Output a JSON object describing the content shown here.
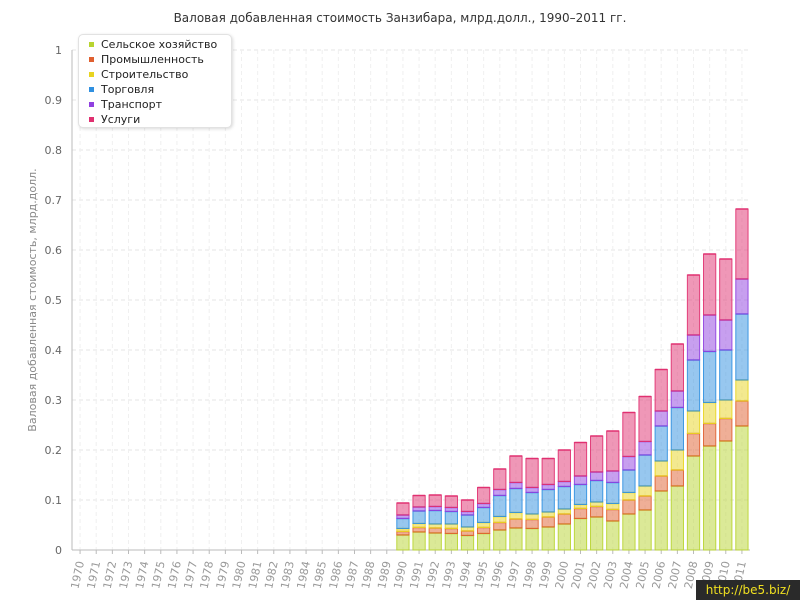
{
  "chart_data": {
    "type": "bar",
    "stacked": true,
    "title": "Валовая добавленная стоимость Занзибара, млрд.долл., 1990–2011 гг.",
    "xlabel": "",
    "ylabel": "Валовая добавленная стоимость, млрд.долл.",
    "ylim": [
      0,
      1
    ],
    "yticks": [
      "0",
      "0.1",
      "0.2",
      "0.3",
      "0.4",
      "0.5",
      "0.6",
      "0.7",
      "0.8",
      "0.9",
      "1"
    ],
    "grid": true,
    "legend_position": "top-left",
    "categories": [
      "1970",
      "1971",
      "1972",
      "1973",
      "1974",
      "1975",
      "1976",
      "1977",
      "1978",
      "1979",
      "1980",
      "1981",
      "1982",
      "1983",
      "1984",
      "1985",
      "1986",
      "1987",
      "1988",
      "1989",
      "1990",
      "1991",
      "1992",
      "1993",
      "1994",
      "1995",
      "1996",
      "1997",
      "1998",
      "1999",
      "2000",
      "2001",
      "2002",
      "2003",
      "2004",
      "2005",
      "2006",
      "2007",
      "2008",
      "2009",
      "2010",
      "2011"
    ],
    "series": [
      {
        "name": "Сельское хозяйство",
        "color": "#b8d430",
        "values": [
          null,
          null,
          null,
          null,
          null,
          null,
          null,
          null,
          null,
          null,
          null,
          null,
          null,
          null,
          null,
          null,
          null,
          null,
          null,
          null,
          0.03,
          0.036,
          0.034,
          0.033,
          0.029,
          0.033,
          0.04,
          0.044,
          0.043,
          0.046,
          0.052,
          0.063,
          0.066,
          0.058,
          0.072,
          0.08,
          0.118,
          0.128,
          0.188,
          0.208,
          0.218,
          0.248
        ]
      },
      {
        "name": "Промышленность",
        "color": "#e06030",
        "values": [
          null,
          null,
          null,
          null,
          null,
          null,
          null,
          null,
          null,
          null,
          null,
          null,
          null,
          null,
          null,
          null,
          null,
          null,
          null,
          null,
          0.007,
          0.009,
          0.01,
          0.01,
          0.009,
          0.012,
          0.015,
          0.018,
          0.018,
          0.02,
          0.02,
          0.02,
          0.021,
          0.023,
          0.028,
          0.028,
          0.03,
          0.032,
          0.045,
          0.045,
          0.045,
          0.05
        ]
      },
      {
        "name": "Строительство",
        "color": "#e8d420",
        "values": [
          null,
          null,
          null,
          null,
          null,
          null,
          null,
          null,
          null,
          null,
          null,
          null,
          null,
          null,
          null,
          null,
          null,
          null,
          null,
          null,
          0.006,
          0.008,
          0.008,
          0.009,
          0.008,
          0.01,
          0.012,
          0.013,
          0.011,
          0.01,
          0.01,
          0.008,
          0.009,
          0.012,
          0.015,
          0.02,
          0.03,
          0.04,
          0.045,
          0.042,
          0.037,
          0.042
        ]
      },
      {
        "name": "Торговля",
        "color": "#3090e0",
        "values": [
          null,
          null,
          null,
          null,
          null,
          null,
          null,
          null,
          null,
          null,
          null,
          null,
          null,
          null,
          null,
          null,
          null,
          null,
          null,
          null,
          0.02,
          0.025,
          0.027,
          0.025,
          0.024,
          0.03,
          0.042,
          0.048,
          0.043,
          0.045,
          0.045,
          0.04,
          0.043,
          0.042,
          0.045,
          0.062,
          0.07,
          0.085,
          0.102,
          0.102,
          0.1,
          0.132
        ]
      },
      {
        "name": "Транспорт",
        "color": "#9040e0",
        "values": [
          null,
          null,
          null,
          null,
          null,
          null,
          null,
          null,
          null,
          null,
          null,
          null,
          null,
          null,
          null,
          null,
          null,
          null,
          null,
          null,
          0.007,
          0.008,
          0.008,
          0.008,
          0.007,
          0.008,
          0.012,
          0.012,
          0.01,
          0.01,
          0.01,
          0.017,
          0.017,
          0.023,
          0.027,
          0.027,
          0.03,
          0.033,
          0.05,
          0.073,
          0.06,
          0.07
        ]
      },
      {
        "name": "Услуги",
        "color": "#e03070",
        "values": [
          null,
          null,
          null,
          null,
          null,
          null,
          null,
          null,
          null,
          null,
          null,
          null,
          null,
          null,
          null,
          null,
          null,
          null,
          null,
          null,
          0.024,
          0.023,
          0.023,
          0.023,
          0.023,
          0.032,
          0.041,
          0.053,
          0.058,
          0.052,
          0.063,
          0.067,
          0.072,
          0.08,
          0.088,
          0.09,
          0.083,
          0.094,
          0.12,
          0.122,
          0.122,
          0.14
        ]
      }
    ]
  },
  "watermark": "http://be5.biz/"
}
